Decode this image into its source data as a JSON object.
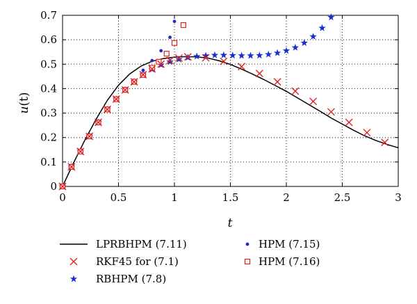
{
  "chart_data": {
    "type": "line",
    "title": "",
    "xlabel": "t",
    "ylabel_main": "u",
    "ylabel_arg": "(t)",
    "xlim": [
      0,
      3
    ],
    "ylim": [
      0,
      0.7
    ],
    "xticks": [
      0,
      0.5,
      1,
      1.5,
      2,
      2.5,
      3
    ],
    "xtick_labels": [
      "0",
      "0.5",
      "1",
      "1.5",
      "2",
      "2.5",
      "3"
    ],
    "yticks": [
      0,
      0.1,
      0.2,
      0.3,
      0.4,
      0.5,
      0.6,
      0.7
    ],
    "ytick_labels": [
      "0",
      "0.1",
      "0.2",
      "0.3",
      "0.4",
      "0.5",
      "0.6",
      "0.7"
    ],
    "grid": "dotted",
    "legend_position": "bottom",
    "series": [
      {
        "name": "LPRBHPM (7.11)",
        "kind": "line",
        "color": "#000000",
        "x": [
          0,
          0.1,
          0.2,
          0.3,
          0.4,
          0.5,
          0.6,
          0.7,
          0.8,
          0.9,
          1.0,
          1.1,
          1.2,
          1.3,
          1.4,
          1.5,
          1.6,
          1.7,
          1.8,
          1.9,
          2.0,
          2.1,
          2.2,
          2.3,
          2.4,
          2.5,
          2.6,
          2.7,
          2.8,
          2.9,
          3.0
        ],
        "y": [
          0,
          0.098,
          0.19,
          0.275,
          0.352,
          0.414,
          0.46,
          0.492,
          0.512,
          0.523,
          0.529,
          0.531,
          0.53,
          0.525,
          0.514,
          0.499,
          0.48,
          0.459,
          0.437,
          0.413,
          0.389,
          0.362,
          0.335,
          0.308,
          0.28,
          0.255,
          0.23,
          0.207,
          0.188,
          0.172,
          0.158
        ]
      },
      {
        "name": "RKF45 for (7.1)",
        "kind": "marker",
        "marker": "x",
        "color": "#e02020",
        "x": [
          0,
          0.08,
          0.16,
          0.24,
          0.32,
          0.4,
          0.48,
          0.56,
          0.64,
          0.72,
          0.8,
          0.88,
          0.96,
          1.04,
          1.12,
          1.28,
          1.44,
          1.6,
          1.76,
          1.92,
          2.08,
          2.24,
          2.4,
          2.56,
          2.72,
          2.88,
          3.04
        ],
        "y": [
          0,
          0.08,
          0.143,
          0.205,
          0.262,
          0.315,
          0.357,
          0.395,
          0.428,
          0.457,
          0.481,
          0.5,
          0.515,
          0.525,
          0.53,
          0.526,
          0.512,
          0.49,
          0.462,
          0.428,
          0.39,
          0.348,
          0.305,
          0.262,
          0.22,
          0.18,
          0.143
        ]
      },
      {
        "name": "RBHPM (7.8)",
        "kind": "marker",
        "marker": "star",
        "color": "#1a2ecc",
        "x": [
          0,
          0.08,
          0.16,
          0.24,
          0.32,
          0.4,
          0.48,
          0.56,
          0.64,
          0.72,
          0.8,
          0.88,
          0.96,
          1.04,
          1.12,
          1.2,
          1.28,
          1.36,
          1.44,
          1.52,
          1.6,
          1.68,
          1.76,
          1.84,
          1.92,
          2.0,
          2.08,
          2.16,
          2.24,
          2.32,
          2.4
        ],
        "y": [
          0,
          0.08,
          0.143,
          0.205,
          0.262,
          0.315,
          0.357,
          0.395,
          0.428,
          0.456,
          0.479,
          0.497,
          0.51,
          0.52,
          0.527,
          0.532,
          0.535,
          0.537,
          0.537,
          0.536,
          0.535,
          0.535,
          0.536,
          0.54,
          0.546,
          0.555,
          0.568,
          0.587,
          0.613,
          0.648,
          0.692
        ]
      },
      {
        "name": "HPM (7.15)",
        "kind": "marker",
        "marker": "dot",
        "color": "#1a2ecc",
        "x": [
          0,
          0.08,
          0.16,
          0.24,
          0.32,
          0.4,
          0.48,
          0.56,
          0.64,
          0.72,
          0.8,
          0.88,
          0.96,
          1.0
        ],
        "y": [
          0,
          0.08,
          0.143,
          0.205,
          0.262,
          0.315,
          0.358,
          0.398,
          0.433,
          0.475,
          0.515,
          0.555,
          0.61,
          0.675
        ]
      },
      {
        "name": "HPM (7.16)",
        "kind": "marker",
        "marker": "square",
        "color": "#e02020",
        "x": [
          0,
          0.08,
          0.16,
          0.24,
          0.32,
          0.4,
          0.48,
          0.56,
          0.64,
          0.72,
          0.8,
          0.86,
          0.93,
          1.0,
          1.08
        ],
        "y": [
          0,
          0.08,
          0.143,
          0.205,
          0.262,
          0.315,
          0.357,
          0.395,
          0.428,
          0.456,
          0.485,
          0.51,
          0.543,
          0.587,
          0.66
        ]
      }
    ]
  }
}
